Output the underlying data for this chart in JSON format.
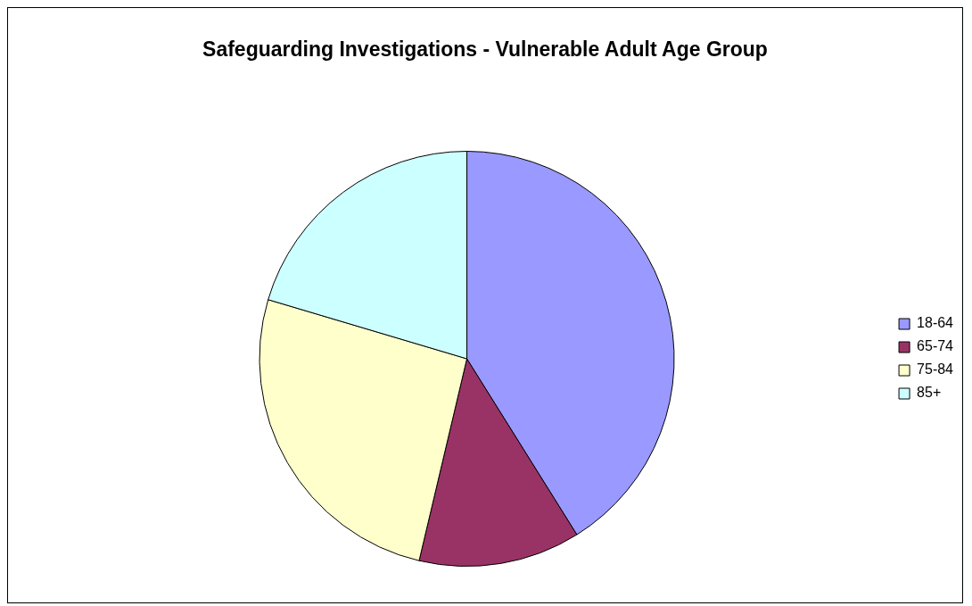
{
  "chart_data": {
    "type": "pie",
    "title": "Safeguarding Investigations - Vulnerable Adult Age Group",
    "categories": [
      "18-64",
      "65-74",
      "75-84",
      "85+"
    ],
    "values": [
      41.1,
      12.6,
      25.9,
      20.4
    ],
    "colors": [
      "#9999ff",
      "#993366",
      "#ffffcc",
      "#ccffff"
    ],
    "legend": "right"
  }
}
